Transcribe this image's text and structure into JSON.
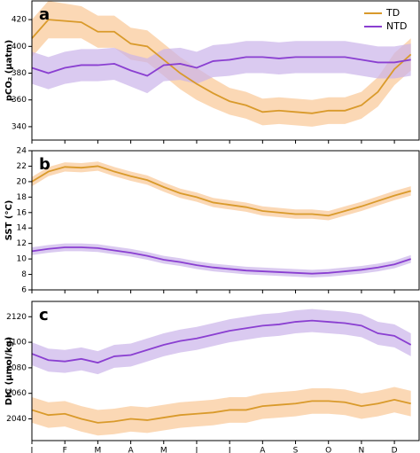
{
  "chart_data": [
    {
      "type": "line",
      "panel_label": "a",
      "ylabel": "pCO₂ (μatm)",
      "legend": "upper right",
      "x": [
        0,
        0.5,
        1,
        1.5,
        2,
        2.5,
        3,
        3.5,
        4,
        4.5,
        5,
        5.5,
        6,
        6.5,
        7,
        7.5,
        8,
        8.5,
        9,
        9.5,
        10,
        10.5,
        11,
        11.5
      ],
      "xlim": [
        0,
        11.75
      ],
      "xticks": [
        0,
        1,
        2,
        3,
        4,
        5,
        6,
        7,
        8,
        9,
        10,
        11
      ],
      "ylim": [
        330,
        434
      ],
      "yticks": [
        340,
        360,
        380,
        400,
        420
      ],
      "series": [
        {
          "name": "TD",
          "color": "#d99a2b",
          "band_color": "#f9c896",
          "values": [
            406,
            420,
            419,
            418,
            411,
            411,
            402,
            400,
            390,
            380,
            372,
            365,
            359,
            356,
            351,
            352,
            351,
            350,
            352,
            352,
            356,
            366,
            383,
            394
          ],
          "lower": [
            392,
            406,
            406,
            406,
            399,
            399,
            390,
            388,
            378,
            368,
            360,
            354,
            349,
            346,
            341,
            342,
            341,
            340,
            342,
            342,
            346,
            355,
            371,
            382
          ],
          "upper": [
            420,
            434,
            432,
            430,
            423,
            423,
            414,
            412,
            402,
            392,
            384,
            376,
            369,
            366,
            361,
            362,
            361,
            360,
            362,
            362,
            366,
            377,
            395,
            406
          ]
        },
        {
          "name": "NTD",
          "color": "#8a3fd1",
          "band_color": "#cbb4ea",
          "values": [
            384,
            380,
            384,
            386,
            386,
            387,
            382,
            378,
            386,
            387,
            384,
            389,
            390,
            392,
            392,
            391,
            392,
            392,
            392,
            392,
            390,
            388,
            388,
            390
          ],
          "lower": [
            372,
            368,
            372,
            374,
            374,
            375,
            370,
            365,
            374,
            375,
            372,
            377,
            378,
            380,
            380,
            379,
            380,
            380,
            380,
            380,
            378,
            376,
            376,
            378
          ],
          "upper": [
            396,
            392,
            396,
            398,
            398,
            399,
            394,
            391,
            398,
            399,
            396,
            401,
            402,
            404,
            404,
            403,
            404,
            404,
            404,
            404,
            402,
            400,
            400,
            402
          ]
        }
      ]
    },
    {
      "type": "line",
      "panel_label": "b",
      "ylabel": "SST (°C)",
      "x": [
        0,
        0.5,
        1,
        1.5,
        2,
        2.5,
        3,
        3.5,
        4,
        4.5,
        5,
        5.5,
        6,
        6.5,
        7,
        7.5,
        8,
        8.5,
        9,
        9.5,
        10,
        10.5,
        11,
        11.5
      ],
      "xlim": [
        0,
        11.75
      ],
      "xticks": [
        0,
        1,
        2,
        3,
        4,
        5,
        6,
        7,
        8,
        9,
        10,
        11
      ],
      "ylim": [
        6,
        24
      ],
      "yticks": [
        6,
        8,
        10,
        12,
        14,
        16,
        18,
        20,
        22,
        24
      ],
      "series": [
        {
          "color": "#d99a2b",
          "band_color": "#f9c896",
          "values": [
            20,
            21.3,
            21.9,
            21.8,
            22,
            21.3,
            20.7,
            20.2,
            19.3,
            18.5,
            18,
            17.3,
            17,
            16.7,
            16.2,
            16,
            15.8,
            15.8,
            15.6,
            16.2,
            16.8,
            17.5,
            18.2,
            18.8
          ],
          "lower": [
            19.4,
            20.7,
            21.3,
            21.2,
            21.4,
            20.7,
            20.1,
            19.6,
            18.7,
            17.9,
            17.4,
            16.7,
            16.4,
            16.1,
            15.6,
            15.4,
            15.2,
            15.2,
            15,
            15.6,
            16.2,
            16.9,
            17.6,
            18.2
          ],
          "upper": [
            20.6,
            21.9,
            22.5,
            22.4,
            22.6,
            21.9,
            21.3,
            20.8,
            19.9,
            19.1,
            18.6,
            17.9,
            17.6,
            17.3,
            16.8,
            16.6,
            16.4,
            16.4,
            16.2,
            16.8,
            17.4,
            18.1,
            18.8,
            19.4
          ]
        },
        {
          "color": "#8a3fd1",
          "band_color": "#cbb4ea",
          "values": [
            11,
            11.3,
            11.5,
            11.5,
            11.4,
            11.1,
            10.8,
            10.4,
            9.9,
            9.6,
            9.2,
            8.9,
            8.7,
            8.5,
            8.4,
            8.3,
            8.2,
            8.1,
            8.2,
            8.4,
            8.6,
            8.9,
            9.3,
            10
          ],
          "lower": [
            10.5,
            10.8,
            11,
            11,
            10.9,
            10.6,
            10.3,
            9.9,
            9.4,
            9.1,
            8.7,
            8.4,
            8.2,
            8,
            7.9,
            7.8,
            7.7,
            7.6,
            7.7,
            7.9,
            8.1,
            8.4,
            8.8,
            9.5
          ],
          "upper": [
            11.5,
            11.8,
            12,
            12,
            11.9,
            11.6,
            11.3,
            10.9,
            10.4,
            10.1,
            9.7,
            9.4,
            9.2,
            9,
            8.9,
            8.8,
            8.7,
            8.6,
            8.7,
            8.9,
            9.1,
            9.4,
            9.8,
            10.5
          ]
        }
      ]
    },
    {
      "type": "line",
      "panel_label": "c",
      "ylabel": "DIC (μmol/kg)",
      "x": [
        0,
        0.5,
        1,
        1.5,
        2,
        2.5,
        3,
        3.5,
        4,
        4.5,
        5,
        5.5,
        6,
        6.5,
        7,
        7.5,
        8,
        8.5,
        9,
        9.5,
        10,
        10.5,
        11,
        11.5
      ],
      "xlim": [
        0,
        11.75
      ],
      "xticks": [
        {
          "value": 0,
          "label": "J"
        },
        {
          "value": 1,
          "label": "F"
        },
        {
          "value": 2,
          "label": "M"
        },
        {
          "value": 3,
          "label": "A"
        },
        {
          "value": 4,
          "label": "M"
        },
        {
          "value": 5,
          "label": "J"
        },
        {
          "value": 6,
          "label": "J"
        },
        {
          "value": 7,
          "label": "A"
        },
        {
          "value": 8,
          "label": "S"
        },
        {
          "value": 9,
          "label": "O"
        },
        {
          "value": 10,
          "label": "N"
        },
        {
          "value": 11,
          "label": "D"
        }
      ],
      "ylim": [
        2023,
        2132
      ],
      "yticks": [
        2040,
        2060,
        2080,
        2100,
        2120
      ],
      "series": [
        {
          "color": "#d99a2b",
          "band_color": "#f9c896",
          "values": [
            2047,
            2043,
            2044,
            2040,
            2037,
            2038,
            2040,
            2039,
            2041,
            2043,
            2044,
            2045,
            2047,
            2047,
            2050,
            2051,
            2052,
            2054,
            2054,
            2053,
            2050,
            2052,
            2055,
            2052
          ],
          "lower": [
            2037,
            2033,
            2034,
            2030,
            2027,
            2028,
            2030,
            2029,
            2031,
            2033,
            2034,
            2035,
            2037,
            2037,
            2040,
            2041,
            2042,
            2044,
            2044,
            2043,
            2040,
            2042,
            2045,
            2042
          ],
          "upper": [
            2057,
            2053,
            2054,
            2050,
            2047,
            2048,
            2050,
            2049,
            2051,
            2053,
            2054,
            2055,
            2057,
            2057,
            2060,
            2061,
            2062,
            2064,
            2064,
            2063,
            2060,
            2062,
            2065,
            2062
          ]
        },
        {
          "color": "#8a3fd1",
          "band_color": "#cbb4ea",
          "values": [
            2091,
            2086,
            2085,
            2087,
            2084,
            2089,
            2090,
            2094,
            2098,
            2101,
            2103,
            2106,
            2109,
            2111,
            2113,
            2114,
            2116,
            2117,
            2116,
            2115,
            2113,
            2107,
            2105,
            2098
          ],
          "lower": [
            2082,
            2077,
            2076,
            2078,
            2075,
            2080,
            2081,
            2085,
            2089,
            2092,
            2094,
            2097,
            2100,
            2102,
            2104,
            2105,
            2107,
            2108,
            2107,
            2106,
            2104,
            2098,
            2096,
            2089
          ],
          "upper": [
            2100,
            2095,
            2094,
            2096,
            2093,
            2098,
            2099,
            2103,
            2107,
            2110,
            2112,
            2115,
            2118,
            2120,
            2122,
            2123,
            2125,
            2126,
            2125,
            2124,
            2122,
            2116,
            2114,
            2107
          ]
        }
      ]
    }
  ]
}
